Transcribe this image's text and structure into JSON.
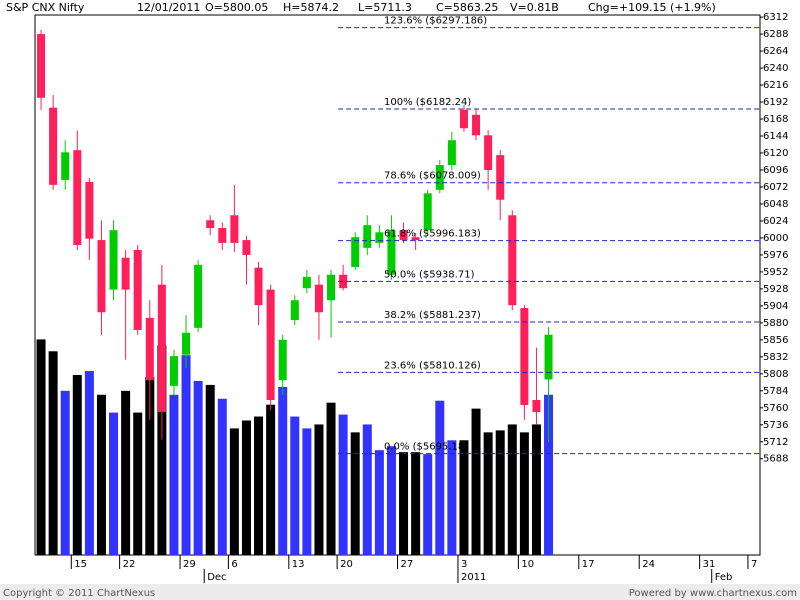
{
  "header": {
    "title": "S&P CNX Nifty",
    "date": "12/01/2011",
    "open": "O=5800.05",
    "high": "H=5874.2",
    "low": "L=5711.3",
    "close": "C=5863.25",
    "volume": "V=0.81B",
    "change": "Chg=+109.15 (+1.9%)"
  },
  "footer": {
    "copyright": "Copyright © 2011 ChartNexus",
    "powered": "Powered by www.chartnexus.com"
  },
  "chart_data": {
    "type": "candlestick",
    "categories": [
      null,
      null,
      null,
      "15",
      null,
      null,
      null,
      "22",
      null,
      null,
      null,
      null,
      "29",
      null,
      null,
      null,
      "6",
      null,
      null,
      null,
      null,
      "13",
      null,
      null,
      null,
      "20",
      null,
      null,
      null,
      null,
      "27",
      null,
      null,
      null,
      null,
      "3",
      null,
      null,
      null,
      null,
      "10",
      null,
      null,
      null,
      null,
      "17",
      null,
      null,
      null,
      null,
      "24",
      null,
      null,
      null,
      null,
      "31",
      null,
      null,
      null,
      "7"
    ],
    "months": [
      null,
      null,
      null,
      null,
      null,
      null,
      null,
      null,
      null,
      null,
      null,
      null,
      null,
      null,
      "Dec",
      null,
      null,
      null,
      null,
      null,
      null,
      null,
      null,
      null,
      null,
      null,
      null,
      null,
      null,
      null,
      null,
      null,
      null,
      null,
      null,
      "2011",
      null,
      null,
      null,
      null,
      null,
      null,
      null,
      null,
      null,
      null,
      null,
      null,
      null,
      null,
      null,
      null,
      null,
      null,
      null,
      null,
      "Feb",
      null,
      null,
      null
    ],
    "open": [
      6288,
      6184,
      6082,
      6124,
      6079,
      5997,
      5927,
      5972,
      5983,
      5887,
      5934,
      5791,
      5835,
      5873,
      6025,
      6014,
      6032,
      5997,
      5958,
      5927,
      5799,
      5884,
      5929,
      5934,
      5912,
      5948,
      5959,
      5986,
      5993,
      5948,
      6011,
      6001,
      6011,
      6068,
      6103,
      6181,
      6174,
      6145,
      6117,
      6032,
      5901,
      5771,
      5800.05,
      null,
      null,
      null,
      null,
      null,
      null,
      null,
      null,
      null,
      null,
      null,
      null,
      null,
      null,
      null,
      null,
      null
    ],
    "high": [
      6294,
      6202,
      6138,
      6152,
      6085,
      6025,
      6025,
      5983,
      5990,
      5912,
      5962,
      5842,
      5891,
      5969,
      6032,
      6022,
      6075,
      6003,
      5966,
      5934,
      5863,
      5919,
      5955,
      5948,
      5955,
      5962,
      6008,
      6032,
      6018,
      6032,
      6022,
      6007,
      6068,
      6110,
      6150,
      6188,
      6183,
      6152,
      6124,
      6039,
      5905,
      5845,
      5874.2,
      null,
      null,
      null,
      null,
      null,
      null,
      null,
      null,
      null,
      null,
      null,
      null,
      null,
      null,
      null,
      null,
      null
    ],
    "low": [
      6181,
      6068,
      6068,
      5983,
      5969,
      5863,
      5912,
      5828,
      5863,
      5743,
      5715,
      5778,
      5816,
      5867,
      6004,
      5983,
      5980,
      5934,
      5877,
      5757,
      5778,
      5877,
      5922,
      5856,
      5859,
      5926,
      5955,
      5976,
      5986,
      5941,
      5993,
      5983,
      6004,
      6063,
      6096,
      6150,
      6138,
      6068,
      6025,
      5898,
      5743,
      5736,
      5711.3,
      null,
      null,
      null,
      null,
      null,
      null,
      null,
      null,
      null,
      null,
      null,
      null,
      null,
      null,
      null,
      null,
      null
    ],
    "close": [
      6198,
      6075,
      6121,
      5990,
      5999,
      5895,
      6011,
      5927,
      5870,
      5799,
      5754,
      5833,
      5866,
      5962,
      6014,
      5993,
      5993,
      5976,
      5905,
      5771,
      5856,
      5912,
      5945,
      5895,
      5948,
      5929,
      6001,
      6018,
      6008,
      6011,
      5997,
      5997,
      6063,
      6103,
      6138,
      6155,
      6145,
      6096,
      6054,
      5905,
      5764,
      5754,
      5863.25,
      null,
      null,
      null,
      null,
      null,
      null,
      null,
      null,
      null,
      null,
      null,
      null,
      null,
      null,
      null,
      null,
      null
    ],
    "volume": [
      1.09,
      1.03,
      0.83,
      0.91,
      0.93,
      0.81,
      0.72,
      0.83,
      0.72,
      0.9,
      1.06,
      0.81,
      1.01,
      0.88,
      0.86,
      0.79,
      0.64,
      0.68,
      0.7,
      0.76,
      0.85,
      0.7,
      0.64,
      0.66,
      0.77,
      0.71,
      0.62,
      0.66,
      0.53,
      0.55,
      0.52,
      0.52,
      0.51,
      0.78,
      0.58,
      0.58,
      0.74,
      0.62,
      0.63,
      0.66,
      0.62,
      0.66,
      0.81,
      null,
      null,
      null,
      null,
      null,
      null,
      null,
      null,
      null,
      null,
      null,
      null,
      null,
      null,
      null,
      null,
      null
    ],
    "volume_colors": [
      "#000000",
      "#000000",
      "#3333ff",
      "#000000",
      "#3333ff",
      "#000000",
      "#3333ff",
      "#000000",
      "#000000",
      "#000000",
      "#000000",
      "#3333ff",
      "#3333ff",
      "#3333ff",
      "#000000",
      "#3333ff",
      "#000000",
      "#000000",
      "#000000",
      "#000000",
      "#3333ff",
      "#3333ff",
      "#3333ff",
      "#000000",
      "#000000",
      "#3333ff",
      "#000000",
      "#3333ff",
      "#3333ff",
      "#3333ff",
      "#000000",
      "#000000",
      "#3333ff",
      "#3333ff",
      "#3333ff",
      "#000000",
      "#000000",
      "#000000",
      "#000000",
      "#000000",
      "#000000",
      "#000000",
      "#3333ff",
      null,
      null,
      null,
      null,
      null,
      null,
      null,
      null,
      null,
      null,
      null,
      null,
      null,
      null,
      null,
      null,
      null
    ],
    "up_color": "#00cc00",
    "down_color": "#ff1f5a",
    "fib_color": "#2222cc",
    "ylim": [
      5552,
      6315
    ],
    "volume_lim": [
      0,
      2.73
    ],
    "yticks": [
      6312,
      6288,
      6264,
      6240,
      6216,
      6192,
      6168,
      6144,
      6120,
      6096,
      6072,
      6048,
      6024,
      6000,
      5976,
      5952,
      5928,
      5904,
      5880,
      5856,
      5832,
      5808,
      5784,
      5760,
      5736,
      5712,
      5688
    ],
    "fib_levels": [
      {
        "value": 6297.186,
        "label": "123.6% ($6297.186)"
      },
      {
        "value": 6182.24,
        "label": "100% ($6182.24)"
      },
      {
        "value": 6078.009,
        "label": "78.6% ($6078.009)"
      },
      {
        "value": 5996.183,
        "label": "61.8% ($5996.183)"
      },
      {
        "value": 5938.71,
        "label": "50.0% ($5938.71)"
      },
      {
        "value": 5881.237,
        "label": "38.2% ($5881.237)"
      },
      {
        "value": 5810.126,
        "label": "23.6% ($5810.126)"
      },
      {
        "value": 5695.18,
        "label": "0.0% ($5695.18)"
      }
    ]
  }
}
